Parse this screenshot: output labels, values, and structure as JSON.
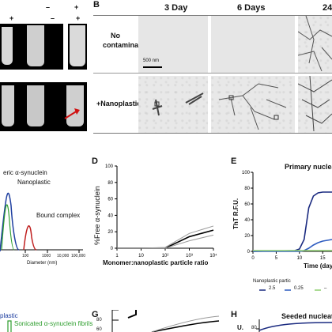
{
  "panels": {
    "A": {
      "letter": "A",
      "signs_top_row": [
        "–",
        "+",
        "+"
      ],
      "signs_second_row": [
        "+",
        "–",
        "+"
      ],
      "sign_left": "+"
    },
    "B": {
      "letter": "B",
      "col_headers": [
        "3 Day",
        "6 Days",
        "24"
      ],
      "row_labels": [
        "No\ncontaminants",
        "+Nanoplastic"
      ],
      "row_label_1_line1": "No",
      "row_label_1_line2": "contaminants",
      "row_label_2": "+Nanoplastic",
      "scale_bar": "500 nm"
    },
    "C": {
      "legend": {
        "monomer": "eric α-synuclein",
        "nanoplastic": "Nanoplastic",
        "bound": "Bound complex"
      },
      "xlabel": "Diameter (nm)",
      "xticks": [
        "100",
        "1000",
        "10,000",
        "100,000"
      ],
      "colors": {
        "monomer": "#2e9e2e",
        "nanoplastic": "#1f3fa0",
        "bound": "#c02020"
      }
    },
    "D": {
      "letter": "D",
      "ylabel": "%Free α-synuclein",
      "xlabel": "Monomer:nanoplastic particle ratio",
      "yticks": [
        "100",
        "80",
        "60",
        "40",
        "20",
        "0"
      ],
      "xticks": [
        "1",
        "10",
        "10²",
        "10³",
        "10⁴"
      ]
    },
    "E": {
      "letter": "E",
      "title": "Primary nucleat",
      "ylabel": "ThT R.F.U.",
      "xlabel": "Time (day",
      "yticks": [
        "100",
        "80",
        "60",
        "40",
        "20",
        "0"
      ],
      "xticks": [
        "0",
        "5",
        "10",
        "15"
      ],
      "legend_title": "Nanoplastic partic",
      "legend_values": [
        "2.5",
        "0.25",
        "–"
      ],
      "colors": {
        "s1": "#1a2a80",
        "s2": "#2e5cc0",
        "s3": "#8fcf70"
      }
    },
    "F": {
      "labels": [
        "plastic",
        "Sonicated α-synuclein fibrils"
      ],
      "colors": {
        "plastic": "#1f3fa0",
        "fibrils": "#2e9e2e"
      }
    },
    "G": {
      "letter": "G",
      "yticks": [
        "100",
        "80",
        "60"
      ]
    },
    "H": {
      "letter": "H",
      "title": "Seeded nucleat",
      "ylabel": "U.",
      "yticks": [
        "100",
        "80"
      ]
    }
  },
  "chart_data": [
    {
      "panel": "D",
      "type": "line",
      "xlabel": "Monomer:nanoplastic particle ratio",
      "ylabel": "%Free α-synuclein",
      "x_log10": [
        0,
        1,
        2,
        3,
        4
      ],
      "ylim": [
        0,
        100
      ],
      "series": [
        {
          "role": "mean",
          "values": [
            0,
            0,
            0,
            14,
            22
          ]
        },
        {
          "role": "upper",
          "values": [
            0,
            0,
            1,
            18,
            27
          ]
        },
        {
          "role": "lower",
          "values": [
            0,
            0,
            0,
            9,
            16
          ]
        }
      ]
    },
    {
      "panel": "E",
      "type": "line",
      "title": "Primary nucleat",
      "xlabel": "Time (day",
      "ylabel": "ThT R.F.U.",
      "xlim": [
        0,
        17
      ],
      "ylim": [
        0,
        100
      ],
      "series": [
        {
          "name": "2.5",
          "x": [
            0,
            9,
            10,
            11,
            11.5,
            12,
            13,
            14,
            15,
            16,
            17
          ],
          "values": [
            0,
            1,
            3,
            15,
            35,
            55,
            70,
            74,
            75,
            75,
            75
          ]
        },
        {
          "name": "0.25",
          "x": [
            0,
            10,
            11,
            12,
            13,
            14,
            15,
            16,
            17
          ],
          "values": [
            0,
            0,
            1,
            4,
            8,
            11,
            13,
            14,
            15
          ]
        },
        {
          "name": "–",
          "x": [
            0,
            17
          ],
          "values": [
            1,
            1
          ]
        }
      ]
    }
  ]
}
